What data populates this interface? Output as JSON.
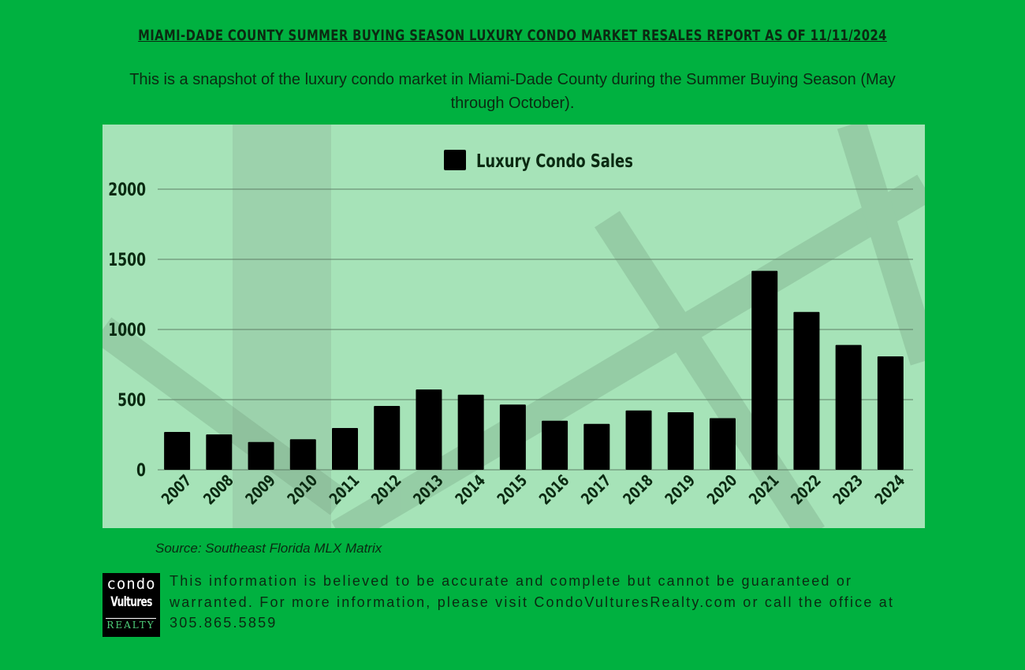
{
  "header": {
    "title": "MIAMI-DADE COUNTY SUMMER BUYING SEASON LUXURY CONDO MARKET RESALES REPORT AS OF 11/11/2024",
    "subtitle": "This is a snapshot of the luxury condo market in Miami-Dade County during  the Summer Buying Season (May through October)."
  },
  "colors": {
    "background": "#00b140",
    "panel": "#a6e3b8",
    "bar": "#000000",
    "text": "#0b2a12"
  },
  "chart_data": {
    "type": "bar",
    "categories": [
      "2007",
      "2008",
      "2009",
      "2010",
      "2011",
      "2012",
      "2013",
      "2014",
      "2015",
      "2016",
      "2017",
      "2018",
      "2019",
      "2020",
      "2021",
      "2022",
      "2023",
      "2024"
    ],
    "series": [
      {
        "name": "Luxury Condo Sales",
        "values": [
          270,
          252,
          198,
          218,
          298,
          455,
          572,
          535,
          465,
          350,
          327,
          423,
          410,
          368,
          1418,
          1125,
          890,
          808
        ]
      }
    ],
    "title": "",
    "xlabel": "",
    "ylabel": "",
    "ylim": [
      0,
      2000
    ],
    "yticks": [
      "0",
      "500",
      "1000",
      "1500",
      "2000"
    ],
    "grid": true,
    "legend": "top-center"
  },
  "footer": {
    "source": "Source: Southeast Florida MLX Matrix",
    "logo": {
      "line1": "condo",
      "line2": "Vultures",
      "line3": "REALTY"
    },
    "disclaimer": "This information is believed to be accurate and complete but cannot be guaranteed or warranted. For more information, please visit CondoVulturesRealty.com or call the office at 305.865.5859"
  }
}
